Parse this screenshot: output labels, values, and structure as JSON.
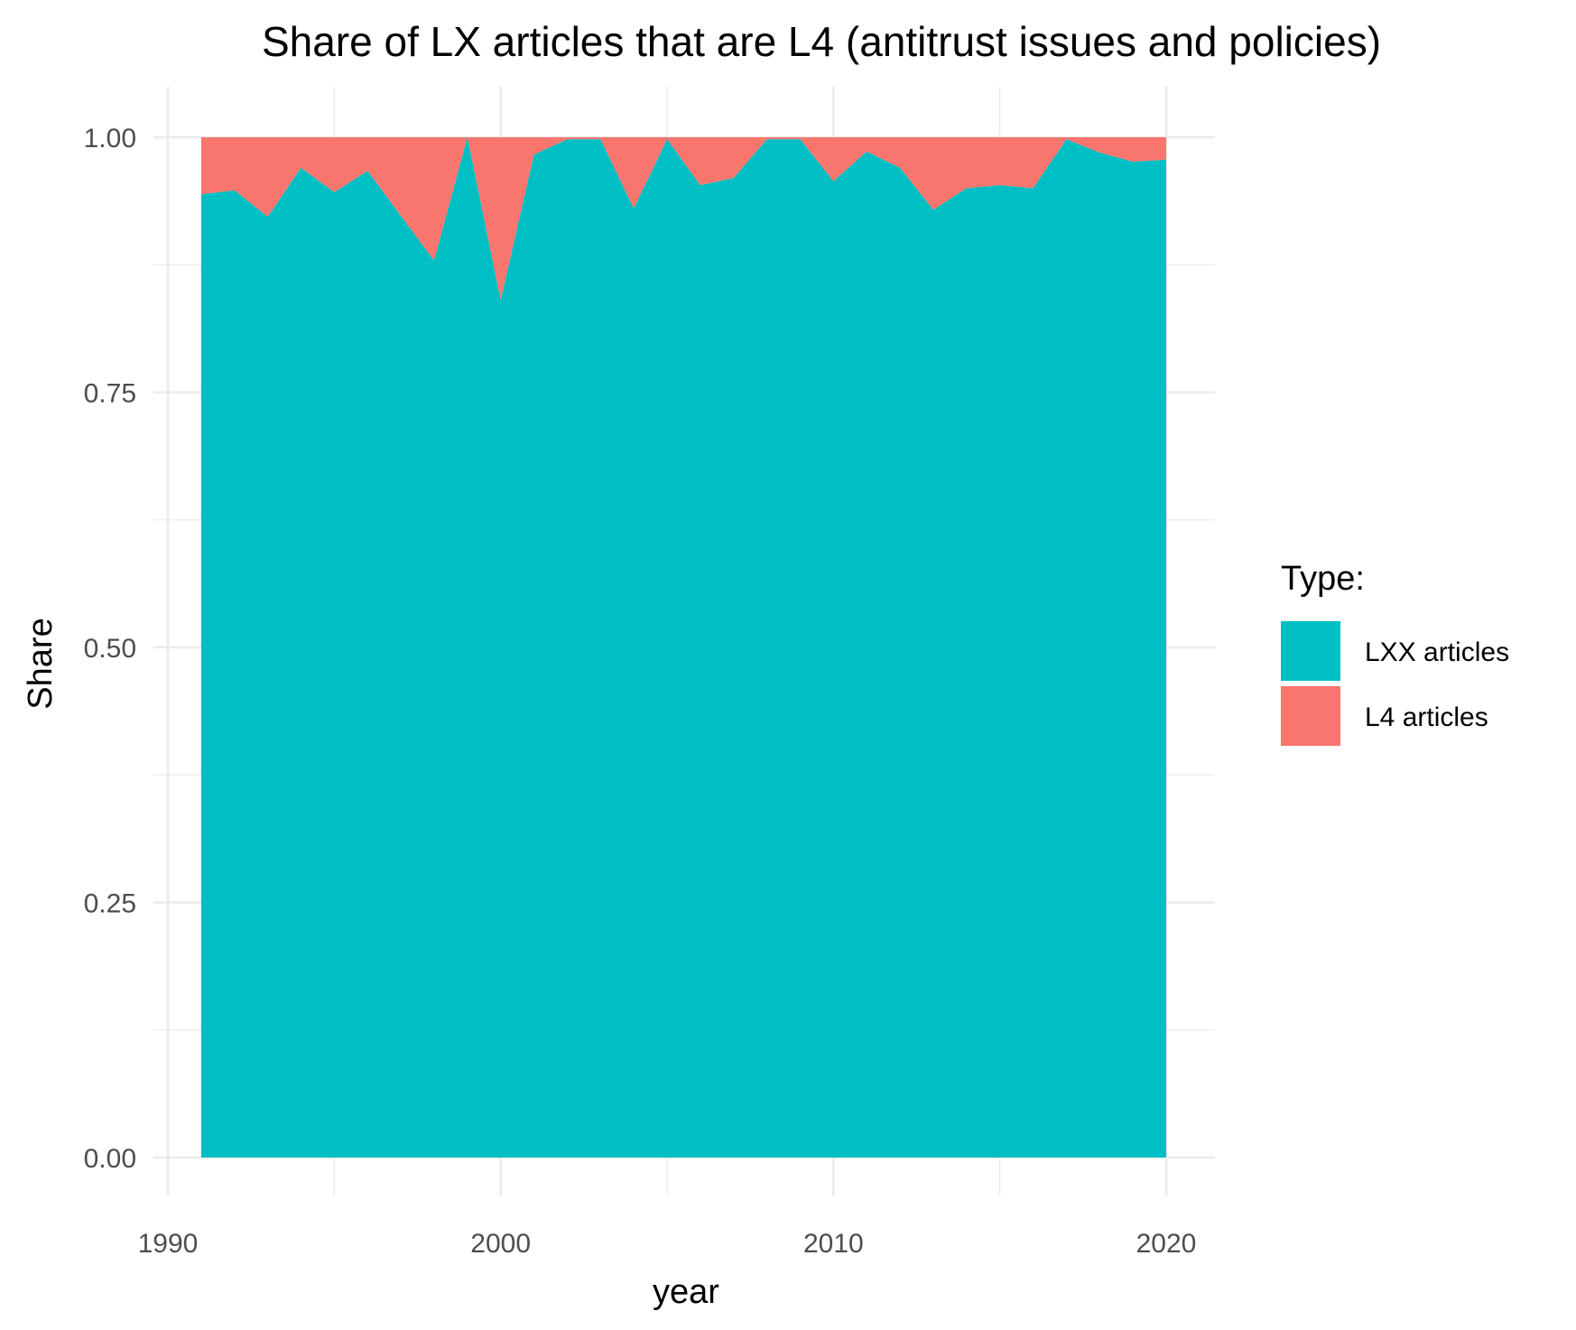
{
  "chart_data": {
    "type": "area",
    "stacked": true,
    "normalized": true,
    "title": "Share of LX articles that are L4 (antitrust issues and policies)",
    "xlabel": "year",
    "ylabel": "Share",
    "xlim": [
      1990,
      2021
    ],
    "ylim": [
      0,
      1
    ],
    "x_ticks": [
      1990,
      2000,
      2010,
      2020
    ],
    "y_ticks": [
      0,
      0.25,
      0.5,
      0.75,
      1
    ],
    "x_tick_labels": [
      "1990",
      "2000",
      "2010",
      "2020"
    ],
    "y_tick_labels": [
      "0.00",
      "0.25",
      "0.50",
      "0.75",
      "1.00"
    ],
    "grid": true,
    "legend": {
      "title": "Type:",
      "position": "right",
      "entries": [
        {
          "label": "LXX articles",
          "color": "#00BFC4"
        },
        {
          "label": "L4 articles",
          "color": "#F8766D"
        }
      ]
    },
    "x": [
      1991,
      1992,
      1993,
      1994,
      1995,
      1996,
      1997,
      1998,
      1999,
      2000,
      2001,
      2002,
      2003,
      2004,
      2005,
      2006,
      2007,
      2008,
      2009,
      2010,
      2011,
      2012,
      2013,
      2014,
      2015,
      2016,
      2017,
      2018,
      2019,
      2020
    ],
    "series": [
      {
        "name": "LXX articles",
        "color": "#00BFC4",
        "values": [
          0.944,
          0.948,
          0.922,
          0.97,
          0.946,
          0.967,
          0.923,
          0.879,
          1.0,
          0.84,
          0.983,
          0.998,
          0.998,
          0.93,
          0.998,
          0.953,
          0.96,
          0.998,
          0.998,
          0.957,
          0.986,
          0.97,
          0.929,
          0.95,
          0.953,
          0.95,
          0.998,
          0.985,
          0.976,
          0.978
        ]
      },
      {
        "name": "L4 articles",
        "color": "#F8766D",
        "values": [
          0.056,
          0.052,
          0.078,
          0.03,
          0.054,
          0.033,
          0.077,
          0.121,
          0.0,
          0.16,
          0.017,
          0.002,
          0.002,
          0.07,
          0.002,
          0.047,
          0.04,
          0.002,
          0.002,
          0.043,
          0.014,
          0.03,
          0.071,
          0.05,
          0.047,
          0.05,
          0.002,
          0.015,
          0.024,
          0.022
        ]
      }
    ]
  }
}
